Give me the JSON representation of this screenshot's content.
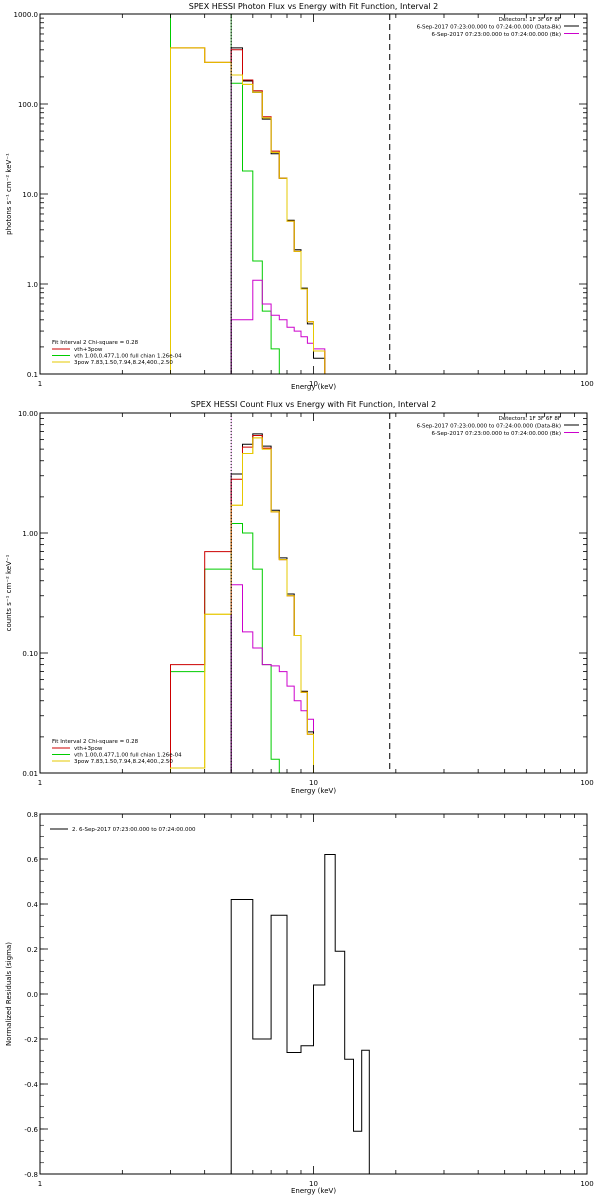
{
  "chart_data": [
    {
      "type": "line",
      "title": "SPEX HESSI Photon Flux vs Energy with Fit Function, Interval 2",
      "xlabel": "Energy (keV)",
      "ylabel": "photons s⁻¹ cm⁻² keV⁻¹",
      "xscale": "log",
      "yscale": "log",
      "xlim": [
        1,
        100
      ],
      "ylim": [
        0.1,
        1000
      ],
      "xtick_labels": [
        "1",
        "10",
        "100"
      ],
      "ytick_labels": [
        "0.1",
        "1.0",
        "10.0",
        "100.0",
        "1000.0"
      ],
      "header_lines": [
        "Detectors: 1F 3F 6F 8F",
        "6-Sep-2017 07:23:00.000 to 07:24:00.000 (Data-Bk)",
        "6-Sep-2017 07:23:00.000 to 07:24:00.000 (Bk)"
      ],
      "legend_title": "Fit Interval 2   Chi-square = 0.28",
      "legend": [
        "vth+3pow",
        "vth 1.00,0.477,1.00  full chian 1.26e-04",
        "3pow 7.83,1.50,7.94,8.24,400.,2.50"
      ],
      "vlines": [
        {
          "x": 5.0,
          "style": "dotted"
        },
        {
          "x": 19.0,
          "style": "dashed"
        }
      ],
      "colors": {
        "data": "#000000",
        "bk": "#cc00cc",
        "total": "#cc0000",
        "vth": "#00cc00",
        "pow": "#e6c800"
      },
      "edges": [
        3.0,
        4.0,
        5.0,
        5.5,
        6.0,
        6.5,
        7.0,
        7.5,
        8.0,
        8.5,
        9.0,
        9.5,
        10.0,
        11.0,
        12.0,
        13.0,
        14.0,
        15.0,
        16.0,
        17.0,
        18.0,
        19.0
      ],
      "series": [
        {
          "name": "Data-Bk",
          "values": [
            null,
            null,
            420,
            180,
            135,
            68,
            28,
            15,
            5.1,
            2.4,
            0.9,
            0.36,
            0.15
          ]
        },
        {
          "name": "Bk",
          "values": [
            null,
            null,
            0.4,
            0.4,
            1.1,
            0.6,
            0.45,
            0.4,
            0.33,
            0.3,
            0.26,
            0.22,
            0.19
          ]
        },
        {
          "name": "vth+3pow",
          "values": [
            420,
            290,
            400,
            185,
            140,
            72,
            30,
            15,
            5.0,
            2.3,
            0.88,
            0.38,
            0.18
          ]
        },
        {
          "name": "vth 1.00,0.477,1.00  full chian 1.26e-04",
          "values": [
            1000,
            1000,
            170,
            18,
            1.8,
            0.5,
            0.19,
            null,
            null,
            null,
            null,
            null,
            null
          ]
        },
        {
          "name": "3pow 7.83,1.50,7.94,8.24,400.,2.50",
          "values": [
            420,
            290,
            210,
            165,
            135,
            70,
            29,
            15,
            5.0,
            2.3,
            0.88,
            0.38,
            0.18
          ]
        }
      ]
    },
    {
      "type": "line",
      "title": "SPEX HESSI Count Flux vs Energy with Fit Function, Interval 2",
      "xlabel": "Energy (keV)",
      "ylabel": "counts s⁻¹ cm⁻² keV⁻¹",
      "xscale": "log",
      "yscale": "log",
      "xlim": [
        1,
        100
      ],
      "ylim": [
        0.01,
        10
      ],
      "xtick_labels": [
        "1",
        "10",
        "100"
      ],
      "ytick_labels": [
        "0.01",
        "0.10",
        "1.00",
        "10.00"
      ],
      "header_lines": [
        "Detectors: 1F 3F 6F 8F",
        "6-Sep-2017 07:23:00.000 to 07:24:00.000 (Data-Bk)",
        "6-Sep-2017 07:23:00.000 to 07:24:00.000 (Bk)"
      ],
      "legend_title": "Fit Interval 2   Chi-square = 0.28",
      "legend": [
        "vth+3pow",
        "vth 1.00,0.477,1.00  full chian 1.26e-04",
        "3pow 7.83,1.50,7.94,8.24,400.,2.50"
      ],
      "vlines": [
        {
          "x": 5.0,
          "style": "dotted"
        },
        {
          "x": 19.0,
          "style": "dashed"
        }
      ],
      "colors": {
        "data": "#000000",
        "bk": "#cc00cc",
        "total": "#cc0000",
        "vth": "#00cc00",
        "pow": "#e6c800"
      },
      "edges": [
        3.0,
        4.0,
        5.0,
        5.5,
        6.0,
        6.5,
        7.0,
        7.5,
        8.0,
        8.5,
        9.0,
        9.5,
        10.0,
        11.0,
        12.0,
        13.0,
        14.0,
        15.0,
        16.0,
        17.0,
        18.0,
        19.0,
        20.0
      ],
      "series": [
        {
          "name": "Data-Bk",
          "values": [
            null,
            null,
            3.1,
            5.5,
            6.7,
            5.3,
            1.55,
            0.62,
            0.31,
            0.14,
            0.048,
            0.022
          ]
        },
        {
          "name": "Bk",
          "values": [
            null,
            null,
            0.37,
            0.15,
            0.11,
            0.08,
            0.078,
            0.07,
            0.053,
            0.04,
            0.033,
            0.028
          ]
        },
        {
          "name": "vth+3pow",
          "values": [
            0.08,
            0.7,
            2.8,
            5.2,
            6.5,
            5.1,
            1.5,
            0.6,
            0.3,
            0.14,
            0.047,
            0.021,
            0.01
          ]
        },
        {
          "name": "vth 1.00,0.477,1.00  full chian 1.26e-04",
          "values": [
            0.07,
            0.5,
            1.2,
            1.0,
            0.5,
            0.08,
            0.013,
            null,
            null,
            null,
            null,
            null,
            null
          ]
        },
        {
          "name": "3pow 7.83,1.50,7.94,8.24,400.,2.50",
          "values": [
            0.011,
            0.21,
            1.7,
            4.6,
            6.2,
            5.0,
            1.5,
            0.6,
            0.3,
            0.14,
            0.047,
            0.021,
            0.01
          ]
        }
      ]
    },
    {
      "type": "line",
      "title": "",
      "xlabel": "Energy (keV)",
      "ylabel": "Normalized Residuals (sigma)",
      "xscale": "log",
      "xlim": [
        1,
        100
      ],
      "ylim": [
        -0.8,
        0.8
      ],
      "xtick_labels": [
        "1",
        "10",
        "100"
      ],
      "ytick_labels": [
        "-0.8",
        "-0.6",
        "-0.4",
        "-0.2",
        "0.0",
        "0.2",
        "0.4",
        "0.6",
        "0.8"
      ],
      "legend": [
        "2.  6-Sep-2017 07:23:00.000 to 07:24:00.000"
      ],
      "edges": [
        5.0,
        6.0,
        7.0,
        8.0,
        9.0,
        10.0,
        11.0,
        12.0,
        13.0,
        14.0,
        15.0,
        16.0,
        17.0,
        18.0,
        19.0
      ],
      "series": [
        {
          "name": "2.  6-Sep-2017 07:23:00.000 to 07:24:00.000",
          "values": [
            0.42,
            -0.2,
            0.35,
            -0.26,
            -0.23,
            0.04,
            0.62,
            0.19,
            -0.29,
            -0.61,
            -0.25
          ]
        }
      ]
    }
  ]
}
